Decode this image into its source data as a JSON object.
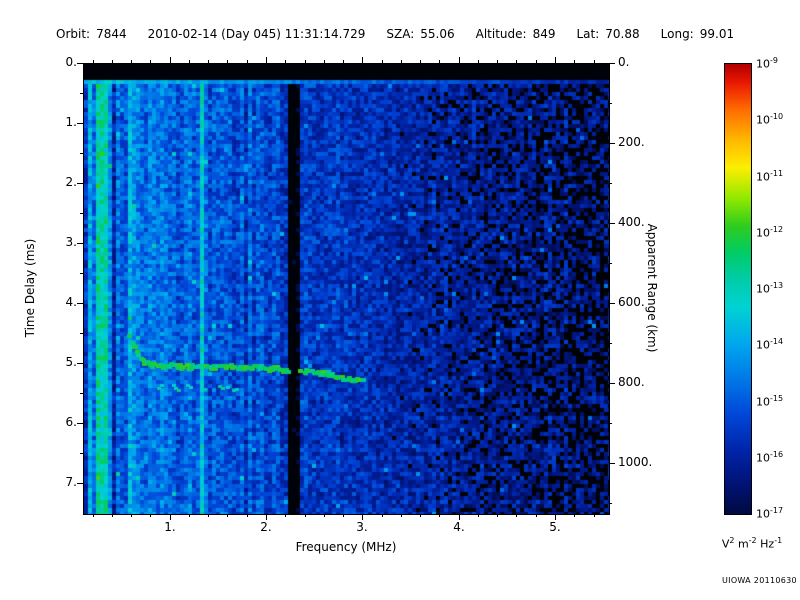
{
  "header": {
    "items": [
      {
        "label": "Orbit:",
        "value": "7844"
      },
      {
        "label": "",
        "value": "2010-02-14 (Day 045) 11:31:14.729"
      },
      {
        "label": "SZA:",
        "value": "55.06"
      },
      {
        "label": "Altitude:",
        "value": "849"
      },
      {
        "label": "Lat:",
        "value": "70.88"
      },
      {
        "label": "Long:",
        "value": "99.01"
      }
    ]
  },
  "watermark": "UIOWA 20110630",
  "colorbar": {
    "tick_exponents": [
      -9,
      -10,
      -11,
      -12,
      -13,
      -14,
      -15,
      -16,
      -17
    ],
    "base": "10",
    "unit_parts": [
      {
        "base": "V",
        "exp": "2"
      },
      {
        "base": "m",
        "exp": "-2"
      },
      {
        "base": "Hz",
        "exp": "-1"
      }
    ],
    "stops": [
      {
        "p": 0.0,
        "c": "#b00000"
      },
      {
        "p": 0.04,
        "c": "#e81600"
      },
      {
        "p": 0.1,
        "c": "#ff6a00"
      },
      {
        "p": 0.17,
        "c": "#ffb900"
      },
      {
        "p": 0.23,
        "c": "#fdee00"
      },
      {
        "p": 0.3,
        "c": "#8fe800"
      },
      {
        "p": 0.36,
        "c": "#2ecc1e"
      },
      {
        "p": 0.42,
        "c": "#00cc66"
      },
      {
        "p": 0.48,
        "c": "#00ccaa"
      },
      {
        "p": 0.54,
        "c": "#00d2d2"
      },
      {
        "p": 0.62,
        "c": "#00a8ee"
      },
      {
        "p": 0.7,
        "c": "#0078e8"
      },
      {
        "p": 0.78,
        "c": "#0046d8"
      },
      {
        "p": 0.86,
        "c": "#0024a8"
      },
      {
        "p": 0.93,
        "c": "#001378"
      },
      {
        "p": 1.0,
        "c": "#000a40"
      }
    ]
  },
  "chart_data": {
    "type": "heatmap",
    "title": "",
    "xlabel": "Frequency (MHz)",
    "ylabel_left": "Time Delay (ms)",
    "ylabel_right": "Apparent Range (km)",
    "xlim": [
      0.1,
      5.55
    ],
    "ylim_ms": [
      0,
      7.5
    ],
    "ylim_right_km": [
      0,
      1125
    ],
    "xticks": [
      1,
      2,
      3,
      4,
      5
    ],
    "yticks_left": [
      0,
      1,
      2,
      3,
      4,
      5,
      6,
      7
    ],
    "yticks_right": [
      0,
      200,
      400,
      600,
      800,
      1000
    ],
    "colorbar_range_exp": [
      -17,
      -9
    ],
    "grid": false,
    "features": {
      "transmit_blank_ms": 0.28,
      "surface_return_ms": 0.3,
      "bright_vertical_line_mhz": 1.32,
      "interference_null_mhz": [
        2.22,
        2.34
      ],
      "low_freq_noise_edge_mhz": 0.62,
      "echo_points": [
        [
          0.55,
          4.5
        ],
        [
          0.62,
          4.72
        ],
        [
          0.7,
          4.95
        ],
        [
          0.8,
          5.03
        ],
        [
          1.2,
          5.05
        ],
        [
          1.8,
          5.05
        ],
        [
          2.2,
          5.1
        ],
        [
          2.6,
          5.16
        ],
        [
          3.0,
          5.3
        ]
      ],
      "echo_secondary": {
        "f_range": [
          0.85,
          1.7
        ],
        "t_ms": 5.38
      },
      "background_intensity": [
        [
          0.1,
          0.74
        ],
        [
          0.5,
          0.7
        ],
        [
          0.8,
          0.58
        ],
        [
          1.2,
          0.52
        ],
        [
          1.6,
          0.47
        ],
        [
          2.0,
          0.43
        ],
        [
          2.5,
          0.39
        ],
        [
          3.0,
          0.33
        ],
        [
          3.5,
          0.27
        ],
        [
          4.2,
          0.23
        ],
        [
          5.0,
          0.21
        ],
        [
          5.55,
          0.2
        ]
      ]
    }
  }
}
